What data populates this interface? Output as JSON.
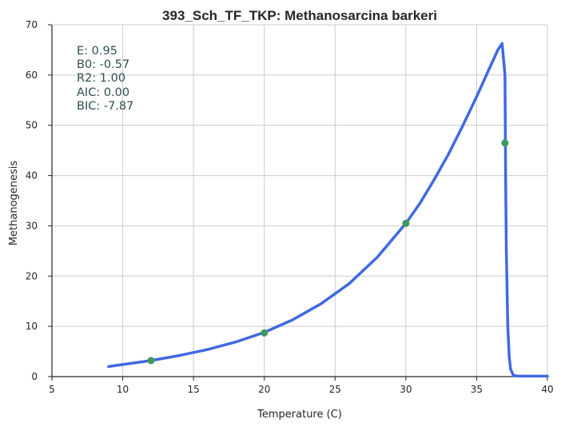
{
  "chart_data": {
    "type": "line",
    "title": "393_Sch_TF_TKP: Methanosarcina barkeri",
    "xlabel": "Temperature (C)",
    "ylabel": "Methanogenesis",
    "xlim": [
      5,
      40
    ],
    "ylim": [
      0,
      70
    ],
    "xticks": [
      5,
      10,
      15,
      20,
      25,
      30,
      35,
      40
    ],
    "yticks": [
      0,
      10,
      20,
      30,
      40,
      50,
      60,
      70
    ],
    "grid": true,
    "series": [
      {
        "kind": "line",
        "color": "#4169e1",
        "x": [
          9,
          10,
          12,
          14,
          16,
          18,
          20,
          22,
          24,
          26,
          28,
          30,
          31,
          32,
          33,
          34,
          35,
          36,
          36.5,
          36.8,
          37.0,
          37.05,
          37.1,
          37.2,
          37.3,
          37.4,
          37.6,
          38,
          40
        ],
        "y": [
          2.0,
          2.4,
          3.2,
          4.2,
          5.4,
          6.9,
          8.8,
          11.3,
          14.5,
          18.5,
          23.8,
          30.5,
          34.5,
          39.2,
          44.2,
          49.8,
          55.7,
          61.9,
          65.0,
          66.3,
          60.0,
          40.0,
          25.0,
          10.0,
          4.0,
          1.5,
          0.2,
          0.1,
          0.1
        ]
      },
      {
        "kind": "scatter",
        "color": "#3a9a5b",
        "x": [
          12,
          20,
          30,
          37
        ],
        "y": [
          3.2,
          8.7,
          30.5,
          46.5
        ]
      }
    ],
    "annotations": {
      "E": "E:  0.95",
      "B0": "B0:  -0.57",
      "R2": "R2:  1.00",
      "AIC": "AIC: 0.00",
      "BIC": "BIC: -7.87"
    }
  }
}
